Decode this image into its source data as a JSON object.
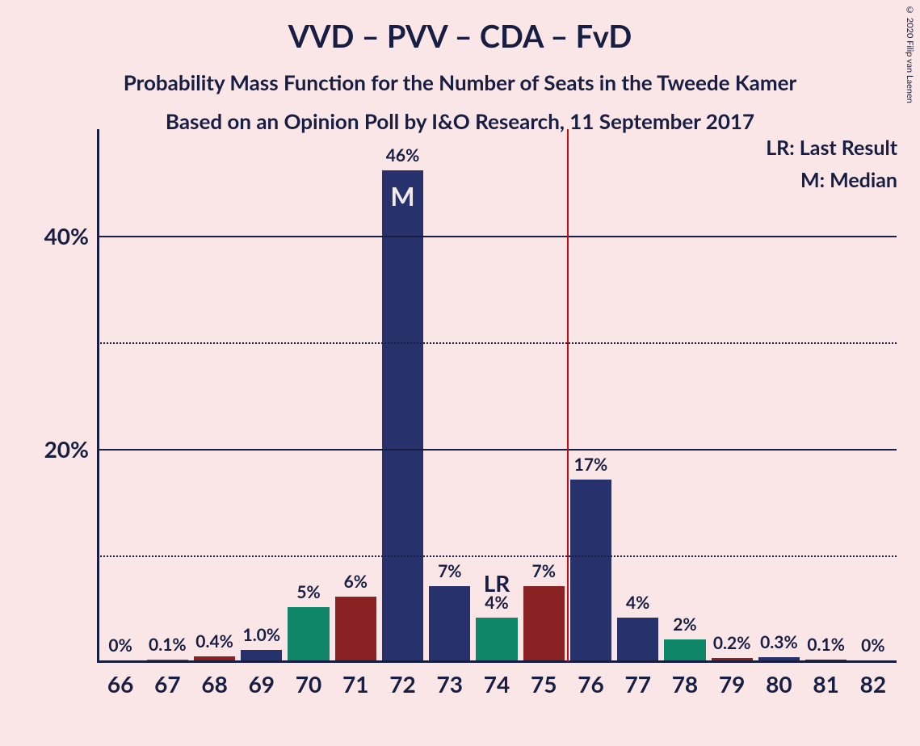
{
  "title": "VVD – PVV – CDA – FvD",
  "subtitle": "Probability Mass Function for the Number of Seats in the Tweede Kamer",
  "subtitle2": "Based on an Opinion Poll by I&O Research, 11 September 2017",
  "copyright": "© 2020 Filip van Laenen",
  "legend": {
    "lr": "LR: Last Result",
    "m": "M: Median"
  },
  "chart": {
    "type": "bar",
    "background_color": "#fae6e6",
    "axis_color": "#171e42",
    "grid_solid_color": "#171e42",
    "grid_dotted_color": "#171e42",
    "title_fontsize": 38,
    "subtitle_fontsize": 26,
    "axis_label_fontsize": 28,
    "xtick_fontsize": 28,
    "bar_label_fontsize": 21,
    "legend_fontsize": 25,
    "ylim": [
      0,
      50
    ],
    "y_major_ticks": [
      20,
      40
    ],
    "y_minor_ticks": [
      10,
      30
    ],
    "bar_width": 0.88,
    "colors": {
      "navy": "#27316b",
      "green": "#0f8667",
      "darkred": "#8a2224"
    },
    "categories": [
      "66",
      "67",
      "68",
      "69",
      "70",
      "71",
      "72",
      "73",
      "74",
      "75",
      "76",
      "77",
      "78",
      "79",
      "80",
      "81",
      "82"
    ],
    "bars": [
      {
        "x": "66",
        "value": 0.0,
        "label": "0%",
        "color_key": "navy"
      },
      {
        "x": "67",
        "value": 0.1,
        "label": "0.1%",
        "color_key": "green"
      },
      {
        "x": "68",
        "value": 0.4,
        "label": "0.4%",
        "color_key": "darkred"
      },
      {
        "x": "69",
        "value": 1.0,
        "label": "1.0%",
        "color_key": "navy"
      },
      {
        "x": "70",
        "value": 5.0,
        "label": "5%",
        "color_key": "green"
      },
      {
        "x": "71",
        "value": 6.0,
        "label": "6%",
        "color_key": "darkred"
      },
      {
        "x": "72",
        "value": 46.0,
        "label": "46%",
        "color_key": "navy",
        "inner_label": "M"
      },
      {
        "x": "73",
        "value": 7.0,
        "label": "7%",
        "color_key": "navy"
      },
      {
        "x": "74",
        "value": 4.0,
        "label": "4%",
        "color_key": "green"
      },
      {
        "x": "75",
        "value": 7.0,
        "label": "7%",
        "color_key": "darkred"
      },
      {
        "x": "76",
        "value": 17.0,
        "label": "17%",
        "color_key": "navy"
      },
      {
        "x": "77",
        "value": 4.0,
        "label": "4%",
        "color_key": "navy"
      },
      {
        "x": "78",
        "value": 2.0,
        "label": "2%",
        "color_key": "green"
      },
      {
        "x": "79",
        "value": 0.2,
        "label": "0.2%",
        "color_key": "darkred"
      },
      {
        "x": "80",
        "value": 0.3,
        "label": "0.3%",
        "color_key": "navy"
      },
      {
        "x": "81",
        "value": 0.1,
        "label": "0.1%",
        "color_key": "navy"
      },
      {
        "x": "82",
        "value": 0.0,
        "label": "0%",
        "color_key": "green"
      }
    ],
    "lr_marker": {
      "between": [
        "75",
        "76"
      ],
      "label": "LR",
      "label_over": "74",
      "line_color": "#c01010"
    },
    "median_label": "M",
    "ytick_format": "{v}%"
  }
}
